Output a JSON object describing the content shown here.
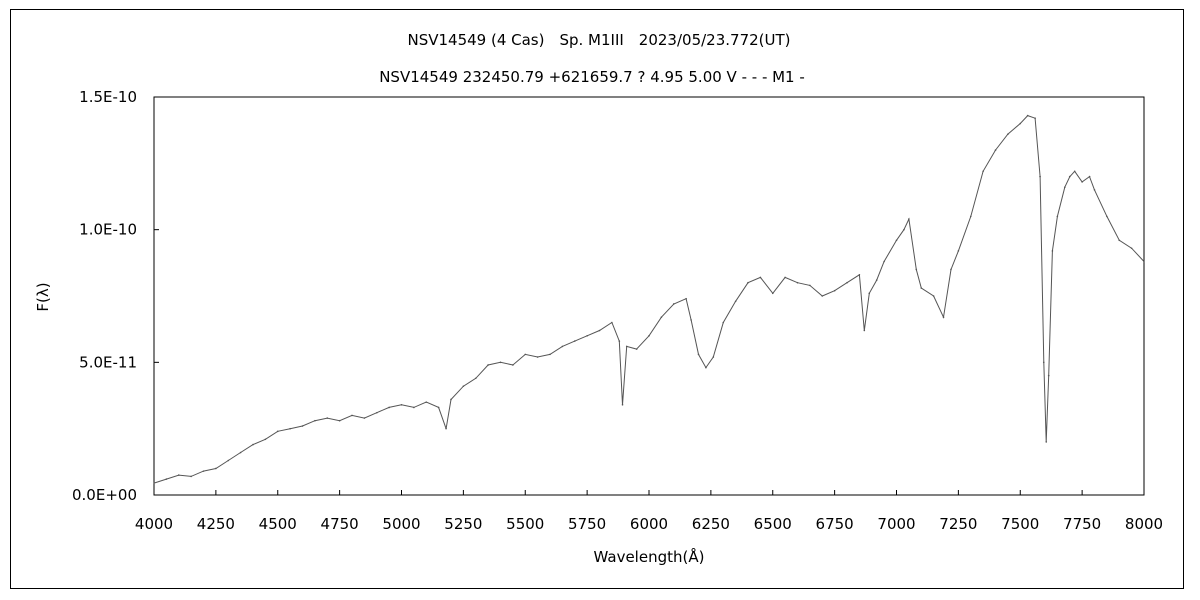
{
  "chart_data": {
    "type": "line",
    "title": "NSV14549 (4 Cas)　Sp. M1III　2023/05/23.772(UT)",
    "subtitle": "NSV14549 232450.79 +621659.7 ? 4.95 5.00 V - - - M1 -",
    "xlabel": "Wavelength(Å)",
    "ylabel": "F(λ)",
    "xlim": [
      4000,
      8000
    ],
    "ylim": [
      0,
      1.5e-10
    ],
    "x_ticks": [
      "4000",
      "4250",
      "4500",
      "4750",
      "5000",
      "5250",
      "5500",
      "5750",
      "6000",
      "6250",
      "6500",
      "6750",
      "7000",
      "7250",
      "7500",
      "7750",
      "8000"
    ],
    "y_ticks": [
      "0.0E+00",
      "5.0E-11",
      "1.0E-10",
      "1.5E-10"
    ],
    "grid": false,
    "series_color": "#555555",
    "series": [
      {
        "x": [
          4000,
          4050,
          4100,
          4150,
          4200,
          4250,
          4300,
          4350,
          4400,
          4450,
          4500,
          4550,
          4600,
          4650,
          4700,
          4750,
          4800,
          4850,
          4900,
          4950,
          5000,
          5050,
          5100,
          5150,
          5180,
          5200,
          5250,
          5300,
          5350,
          5400,
          5450,
          5500,
          5550,
          5600,
          5650,
          5700,
          5750,
          5800,
          5850,
          5880,
          5893,
          5910,
          5950,
          6000,
          6050,
          6100,
          6150,
          6170,
          6200,
          6230,
          6260,
          6300,
          6350,
          6400,
          6450,
          6500,
          6550,
          6600,
          6650,
          6700,
          6750,
          6800,
          6850,
          6870,
          6890,
          6920,
          6950,
          7000,
          7030,
          7050,
          7080,
          7100,
          7150,
          7190,
          7220,
          7250,
          7300,
          7350,
          7400,
          7450,
          7500,
          7530,
          7560,
          7580,
          7595,
          7605,
          7615,
          7630,
          7650,
          7680,
          7700,
          7720,
          7750,
          7780,
          7800,
          7850,
          7900,
          7950,
          8000
        ],
        "y": [
          4.5e-12,
          6e-12,
          7.5e-12,
          7e-12,
          9e-12,
          1e-11,
          1.3e-11,
          1.6e-11,
          1.9e-11,
          2.1e-11,
          2.4e-11,
          2.5e-11,
          2.6e-11,
          2.8e-11,
          2.9e-11,
          2.8e-11,
          3e-11,
          2.9e-11,
          3.1e-11,
          3.3e-11,
          3.4e-11,
          3.3e-11,
          3.5e-11,
          3.3e-11,
          2.5e-11,
          3.6e-11,
          4.1e-11,
          4.4e-11,
          4.9e-11,
          5e-11,
          4.9e-11,
          5.3e-11,
          5.2e-11,
          5.3e-11,
          5.6e-11,
          5.8e-11,
          6e-11,
          6.2e-11,
          6.5e-11,
          5.8e-11,
          3.4e-11,
          5.6e-11,
          5.5e-11,
          6e-11,
          6.7e-11,
          7.2e-11,
          7.4e-11,
          6.6e-11,
          5.3e-11,
          4.8e-11,
          5.2e-11,
          6.5e-11,
          7.3e-11,
          8e-11,
          8.2e-11,
          7.6e-11,
          8.2e-11,
          8e-11,
          7.9e-11,
          7.5e-11,
          7.7e-11,
          8e-11,
          8.3e-11,
          6.2e-11,
          7.6e-11,
          8.1e-11,
          8.8e-11,
          9.6e-11,
          1e-10,
          1.04e-10,
          8.5e-11,
          7.8e-11,
          7.5e-11,
          6.7e-11,
          8.5e-11,
          9.2e-11,
          1.05e-10,
          1.22e-10,
          1.3e-10,
          1.36e-10,
          1.4e-10,
          1.43e-10,
          1.42e-10,
          1.2e-10,
          5e-11,
          2e-11,
          4.5e-11,
          9.2e-11,
          1.05e-10,
          1.16e-10,
          1.2e-10,
          1.22e-10,
          1.18e-10,
          1.2e-10,
          1.15e-10,
          1.05e-10,
          9.6e-11,
          9.3e-11,
          8.8e-11
        ]
      }
    ]
  }
}
